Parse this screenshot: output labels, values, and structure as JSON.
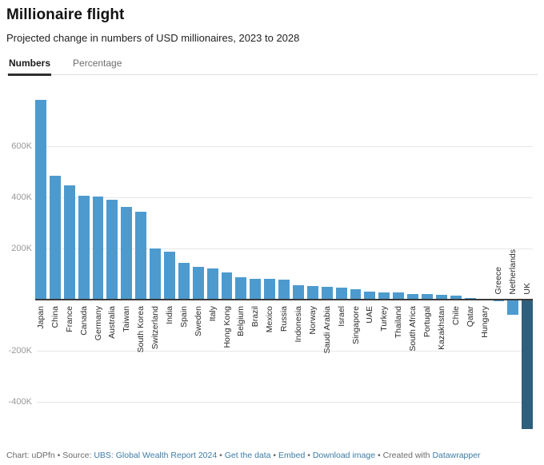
{
  "header": {
    "title": "Millionaire flight",
    "subtitle": "Projected change in numbers of USD millionaires, 2023 to 2028"
  },
  "tabs": [
    {
      "label": "Numbers",
      "active": true
    },
    {
      "label": "Percentage",
      "active": false
    }
  ],
  "chart_data": {
    "type": "bar",
    "title": "Millionaire flight",
    "subtitle": "Projected change in numbers of USD millionaires, 2023 to 2028",
    "unit": "thousands of millionaires (K)",
    "categories": [
      "Japan",
      "China",
      "France",
      "Canada",
      "Germany",
      "Australia",
      "Taiwan",
      "South Korea",
      "Switzerland",
      "India",
      "Spain",
      "Sweden",
      "Italy",
      "Hong Kong",
      "Belgium",
      "Brazil",
      "Mexico",
      "Russia",
      "Indonesia",
      "Norway",
      "Saudi Arabia",
      "Israel",
      "Singapore",
      "UAE",
      "Turkey",
      "Thailand",
      "South Africa",
      "Portugal",
      "Kazakhstan",
      "Chile",
      "Qatar",
      "Hungary",
      "Greece",
      "Netherlands",
      "UK"
    ],
    "values": [
      780,
      485,
      448,
      406,
      403,
      390,
      363,
      344,
      200,
      188,
      144,
      128,
      122,
      106,
      88,
      82,
      80,
      79,
      56,
      53,
      50,
      47,
      41,
      31,
      28,
      26,
      21,
      20,
      18,
      16,
      6,
      3,
      -4,
      -58,
      -505
    ],
    "ylim": [
      -545,
      800
    ],
    "yticks": [
      {
        "v": 600,
        "label": "600K"
      },
      {
        "v": 400,
        "label": "400K"
      },
      {
        "v": 200,
        "label": "200K"
      },
      {
        "v": -200,
        "label": "-200K"
      },
      {
        "v": -400,
        "label": "-400K"
      }
    ],
    "xlabel": "",
    "ylabel": "",
    "grid": true,
    "legend": "none",
    "bar_color": "#4d9bce",
    "highlight": {
      "category": "UK",
      "color": "#2e5f7c"
    }
  },
  "footer": {
    "prefix": "Chart: uDPfn • Source: ",
    "source_link": "UBS: Global Wealth Report 2024",
    "sep1": " • ",
    "link_get_data": "Get the data",
    "sep2": " • ",
    "link_embed": "Embed",
    "sep3": "  • ",
    "link_download": "Download image",
    "sep4": " • ",
    "created": "Created with ",
    "link_datawrapper": "Datawrapper"
  }
}
